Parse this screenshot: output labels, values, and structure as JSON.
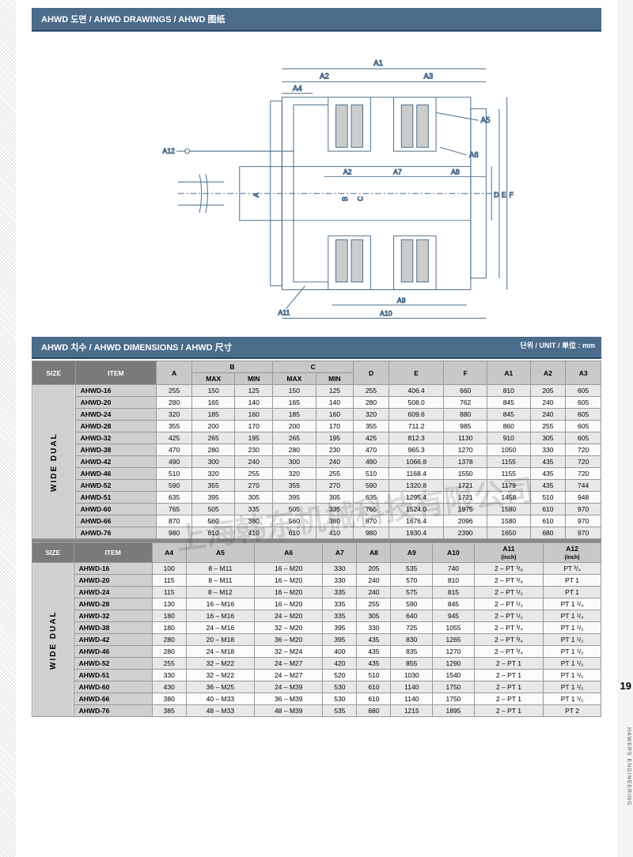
{
  "pageNum": "19",
  "sideText": "HAWERS ENGINEERING",
  "watermark": "上海韩东机械科技有限公司",
  "titleBar1": "AHWD 도면 / AHWD DRAWINGS / AHWD 图纸",
  "titleBar2": "AHWD 치수 / AHWD DIMENSIONS / AHWD 尺寸",
  "unitNote": "단위 / UNIT / 单位 : mm",
  "drawing": {
    "labels": {
      "A": "A",
      "A1": "A1",
      "A2": "A2",
      "A3": "A3",
      "A4": "A4",
      "A5": "A5",
      "A6": "A6",
      "A7": "A7",
      "A8": "A8",
      "A9": "A9",
      "A10": "A10",
      "A11": "A11",
      "A12": "A12",
      "B": "B",
      "C": "C",
      "D": "D",
      "E": "E",
      "F": "F"
    },
    "colors": {
      "line": "#4a6b8a",
      "dim": "#4a6b8a",
      "fill": "#ffffff",
      "friction": "#888"
    }
  },
  "table1": {
    "groupLabel": "WIDE DUAL",
    "header1": {
      "size": "SIZE",
      "item": "ITEM",
      "A": "A",
      "B": "B",
      "C": "C",
      "D": "D",
      "E": "E",
      "F": "F",
      "A1": "A1",
      "A2": "A2",
      "A3": "A3",
      "MAX": "MAX",
      "MIN": "MIN"
    },
    "rows": [
      {
        "m": "AHWD-16",
        "A": "255",
        "Bmax": "150",
        "Bmin": "125",
        "Cmax": "150",
        "Cmin": "125",
        "D": "255",
        "E": "406.4",
        "F": "660",
        "A1": "810",
        "A2": "205",
        "A3": "605"
      },
      {
        "m": "AHWD-20",
        "A": "280",
        "Bmax": "165",
        "Bmin": "140",
        "Cmax": "165",
        "Cmin": "140",
        "D": "280",
        "E": "508.0",
        "F": "762",
        "A1": "845",
        "A2": "240",
        "A3": "605"
      },
      {
        "m": "AHWD-24",
        "A": "320",
        "Bmax": "185",
        "Bmin": "160",
        "Cmax": "185",
        "Cmin": "160",
        "D": "320",
        "E": "609.6",
        "F": "880",
        "A1": "845",
        "A2": "240",
        "A3": "605"
      },
      {
        "m": "AHWD-28",
        "A": "355",
        "Bmax": "200",
        "Bmin": "170",
        "Cmax": "200",
        "Cmin": "170",
        "D": "355",
        "E": "711.2",
        "F": "985",
        "A1": "860",
        "A2": "255",
        "A3": "605"
      },
      {
        "m": "AHWD-32",
        "A": "425",
        "Bmax": "265",
        "Bmin": "195",
        "Cmax": "265",
        "Cmin": "195",
        "D": "425",
        "E": "812.3",
        "F": "1130",
        "A1": "910",
        "A2": "305",
        "A3": "605"
      },
      {
        "m": "AHWD-38",
        "A": "470",
        "Bmax": "280",
        "Bmin": "230",
        "Cmax": "280",
        "Cmin": "230",
        "D": "470",
        "E": "965.3",
        "F": "1270",
        "A1": "1050",
        "A2": "330",
        "A3": "720"
      },
      {
        "m": "AHWD-42",
        "A": "490",
        "Bmax": "300",
        "Bmin": "240",
        "Cmax": "300",
        "Cmin": "240",
        "D": "490",
        "E": "1066.8",
        "F": "1378",
        "A1": "1155",
        "A2": "435",
        "A3": "720"
      },
      {
        "m": "AHWD-46",
        "A": "510",
        "Bmax": "320",
        "Bmin": "255",
        "Cmax": "320",
        "Cmin": "255",
        "D": "510",
        "E": "1168.4",
        "F": "1550",
        "A1": "1155",
        "A2": "435",
        "A3": "720"
      },
      {
        "m": "AHWD-52",
        "A": "590",
        "Bmax": "355",
        "Bmin": "270",
        "Cmax": "355",
        "Cmin": "270",
        "D": "590",
        "E": "1320.8",
        "F": "1721",
        "A1": "1179",
        "A2": "435",
        "A3": "744"
      },
      {
        "m": "AHWD-51",
        "A": "635",
        "Bmax": "395",
        "Bmin": "305",
        "Cmax": "395",
        "Cmin": "305",
        "D": "635",
        "E": "1295.4",
        "F": "1721",
        "A1": "1458",
        "A2": "510",
        "A3": "948"
      },
      {
        "m": "AHWD-60",
        "A": "765",
        "Bmax": "505",
        "Bmin": "335",
        "Cmax": "505",
        "Cmin": "335",
        "D": "765",
        "E": "1524.0",
        "F": "1975",
        "A1": "1580",
        "A2": "610",
        "A3": "970"
      },
      {
        "m": "AHWD-66",
        "A": "870",
        "Bmax": "560",
        "Bmin": "380",
        "Cmax": "560",
        "Cmin": "380",
        "D": "870",
        "E": "1676.4",
        "F": "2096",
        "A1": "1580",
        "A2": "610",
        "A3": "970"
      },
      {
        "m": "AHWD-76",
        "A": "980",
        "Bmax": "610",
        "Bmin": "410",
        "Cmax": "610",
        "Cmin": "410",
        "D": "980",
        "E": "1930.4",
        "F": "2390",
        "A1": "1650",
        "A2": "680",
        "A3": "970"
      }
    ]
  },
  "table2": {
    "groupLabel": "WIDE DUAL",
    "header": {
      "size": "SIZE",
      "item": "ITEM",
      "A4": "A4",
      "A5": "A5",
      "A6": "A6",
      "A7": "A7",
      "A8": "A8",
      "A9": "A9",
      "A10": "A10",
      "A11": "A11",
      "A11u": "(inch)",
      "A12": "A12",
      "A12u": "(inch)"
    },
    "rows": [
      {
        "m": "AHWD-16",
        "A4": "100",
        "A5": "8 – M11",
        "A6": "16 – M20",
        "A7": "330",
        "A8": "205",
        "A9": "535",
        "A10": "740",
        "A11": "2 – PT ³/₈",
        "A12": "PT ³/₄"
      },
      {
        "m": "AHWD-20",
        "A4": "115",
        "A5": "8 – M11",
        "A6": "16 – M20",
        "A7": "330",
        "A8": "240",
        "A9": "570",
        "A10": "810",
        "A11": "2 – PT ³/₈",
        "A12": "PT 1"
      },
      {
        "m": "AHWD-24",
        "A4": "115",
        "A5": "8 – M12",
        "A6": "16 – M20",
        "A7": "335",
        "A8": "240",
        "A9": "575",
        "A10": "815",
        "A11": "2 – PT ¹/₂",
        "A12": "PT 1"
      },
      {
        "m": "AHWD-28",
        "A4": "130",
        "A5": "16 – M16",
        "A6": "16 – M20",
        "A7": "335",
        "A8": "255",
        "A9": "590",
        "A10": "845",
        "A11": "2 – PT ¹/₂",
        "A12": "PT 1 ¹/₄"
      },
      {
        "m": "AHWD-32",
        "A4": "180",
        "A5": "16 – M16",
        "A6": "24 – M20",
        "A7": "335",
        "A8": "305",
        "A9": "640",
        "A10": "945",
        "A11": "2 – PT ¹/₂",
        "A12": "PT 1 ¹/₄"
      },
      {
        "m": "AHWD-38",
        "A4": "180",
        "A5": "24 – M16",
        "A6": "32 – M20",
        "A7": "395",
        "A8": "330",
        "A9": "725",
        "A10": "1055",
        "A11": "2 – PT ³/₄",
        "A12": "PT 1 ¹/₂"
      },
      {
        "m": "AHWD-42",
        "A4": "280",
        "A5": "20 – M18",
        "A6": "36 – M20",
        "A7": "395",
        "A8": "435",
        "A9": "830",
        "A10": "1265",
        "A11": "2 – PT ³/₄",
        "A12": "PT 1 ¹/₂"
      },
      {
        "m": "AHWD-46",
        "A4": "280",
        "A5": "24 – M18",
        "A6": "32 – M24",
        "A7": "400",
        "A8": "435",
        "A9": "835",
        "A10": "1270",
        "A11": "2 – PT ³/₄",
        "A12": "PT 1 ¹/₂"
      },
      {
        "m": "AHWD-52",
        "A4": "255",
        "A5": "32 – M22",
        "A6": "24 – M27",
        "A7": "420",
        "A8": "435",
        "A9": "855",
        "A10": "1290",
        "A11": "2 – PT 1",
        "A12": "PT 1 ¹/₂"
      },
      {
        "m": "AHWD-51",
        "A4": "330",
        "A5": "32 – M22",
        "A6": "24 – M27",
        "A7": "520",
        "A8": "510",
        "A9": "1030",
        "A10": "1540",
        "A11": "2 – PT 1",
        "A12": "PT 1 ¹/₂"
      },
      {
        "m": "AHWD-60",
        "A4": "430",
        "A5": "36 – M25",
        "A6": "24 – M39",
        "A7": "530",
        "A8": "610",
        "A9": "1140",
        "A10": "1750",
        "A11": "2 – PT 1",
        "A12": "PT 1 ¹/₂"
      },
      {
        "m": "AHWD-66",
        "A4": "380",
        "A5": "40 – M33",
        "A6": "36 – M39",
        "A7": "530",
        "A8": "610",
        "A9": "1140",
        "A10": "1750",
        "A11": "2 – PT 1",
        "A12": "PT 1 ¹/₂"
      },
      {
        "m": "AHWD-76",
        "A4": "385",
        "A5": "48 – M33",
        "A6": "48 – M39",
        "A7": "535",
        "A8": "680",
        "A9": "1215",
        "A10": "1895",
        "A11": "2 – PT 1",
        "A12": "PT 2"
      }
    ]
  }
}
